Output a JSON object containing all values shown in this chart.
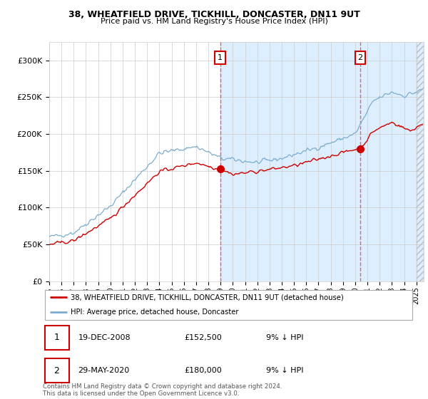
{
  "title1": "38, WHEATFIELD DRIVE, TICKHILL, DONCASTER, DN11 9UT",
  "title2": "Price paid vs. HM Land Registry's House Price Index (HPI)",
  "legend_label_red": "38, WHEATFIELD DRIVE, TICKHILL, DONCASTER, DN11 9UT (detached house)",
  "legend_label_blue": "HPI: Average price, detached house, Doncaster",
  "annotation1_label": "1",
  "annotation1_date": "19-DEC-2008",
  "annotation1_price": "£152,500",
  "annotation1_hpi": "9% ↓ HPI",
  "annotation2_label": "2",
  "annotation2_date": "29-MAY-2020",
  "annotation2_price": "£180,000",
  "annotation2_hpi": "9% ↓ HPI",
  "footer": "Contains HM Land Registry data © Crown copyright and database right 2024.\nThis data is licensed under the Open Government Licence v3.0.",
  "ylim_min": 0,
  "ylim_max": 325000,
  "year_start": 1995,
  "year_end": 2025,
  "purchase1_year": 2008.97,
  "purchase1_price": 152500,
  "purchase2_year": 2020.41,
  "purchase2_price": 180000,
  "red_color": "#cc0000",
  "blue_color": "#7aadcf",
  "shaded_color": "#ddeeff",
  "vline_color": "#dd4444",
  "background_color": "#ffffff",
  "ann_box_color": "#cc0000"
}
